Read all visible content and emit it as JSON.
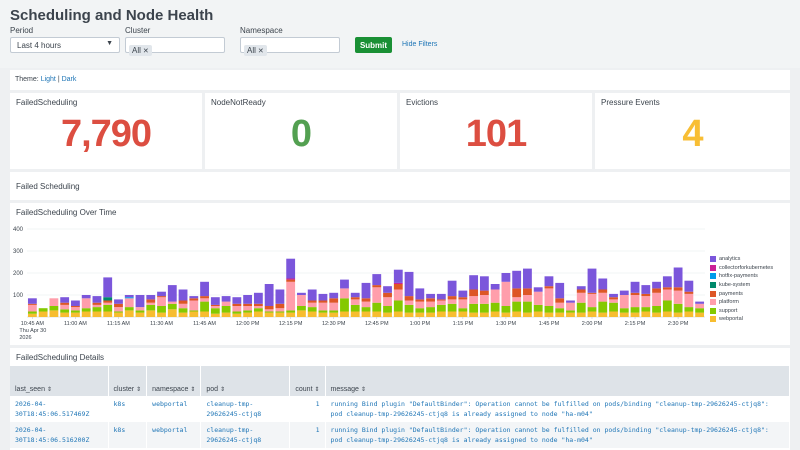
{
  "page": {
    "title": "Scheduling and Node Health"
  },
  "filters": {
    "period": {
      "label": "Period",
      "value": "Last 4 hours"
    },
    "cluster": {
      "label": "Cluster",
      "token": "All"
    },
    "namespace": {
      "label": "Namespace",
      "token": "All"
    },
    "submit_label": "Submit",
    "hide_filters_label": "Hide Filters"
  },
  "theme": {
    "label": "Theme:",
    "light": "Light",
    "separator": "|",
    "dark": "Dark"
  },
  "kpis": [
    {
      "title": "FailedScheduling",
      "value": "7,790",
      "color": "#dc4e41"
    },
    {
      "title": "NodeNotReady",
      "value": "0",
      "color": "#53a051"
    },
    {
      "title": "Evictions",
      "value": "101",
      "color": "#dc4e41"
    },
    {
      "title": "Pressure Events",
      "value": "4",
      "color": "#f8be34"
    }
  ],
  "section": {
    "failed_scheduling": "Failed Scheduling"
  },
  "chart_title": "FailedScheduling Over Time",
  "chart_data": {
    "type": "bar",
    "stacked": true,
    "title": "FailedScheduling Over Time",
    "ylim": [
      0,
      400
    ],
    "yticks": [
      "400",
      "300",
      "200",
      "100"
    ],
    "yticks_values": [
      400,
      300,
      200,
      100
    ],
    "xtick_labels": [
      {
        "label": "10:45 AM",
        "sub": [
          "Thu Apr 30",
          "2026"
        ],
        "index": 0
      },
      {
        "label": "11:00 AM",
        "index": 4
      },
      {
        "label": "11:15 AM",
        "index": 8
      },
      {
        "label": "11:30 AM",
        "index": 12
      },
      {
        "label": "11:45 AM",
        "index": 16
      },
      {
        "label": "12:00 PM",
        "index": 20
      },
      {
        "label": "12:15 PM",
        "index": 24
      },
      {
        "label": "12:30 PM",
        "index": 28
      },
      {
        "label": "12:45 PM",
        "index": 32
      },
      {
        "label": "1:00 PM",
        "index": 36
      },
      {
        "label": "1:15 PM",
        "index": 40
      },
      {
        "label": "1:30 PM",
        "index": 44
      },
      {
        "label": "1:45 PM",
        "index": 48
      },
      {
        "label": "2:00 PM",
        "index": 52
      },
      {
        "label": "2:15 PM",
        "index": 56
      },
      {
        "label": "2:30 PM",
        "index": 60
      }
    ],
    "legend_position": "right",
    "series": [
      {
        "name": "analytics",
        "color": "#7b56db",
        "values": [
          25,
          0,
          0,
          25,
          25,
          15,
          30,
          90,
          20,
          10,
          55,
          20,
          20,
          75,
          50,
          10,
          65,
          35,
          25,
          30,
          40,
          50,
          100,
          65,
          90,
          10,
          50,
          30,
          25,
          40,
          20,
          70,
          50,
          30,
          60,
          110,
          50,
          20,
          25,
          70,
          30,
          65,
          65,
          25,
          40,
          80,
          90,
          20,
          45,
          70,
          10,
          15,
          110,
          50,
          15,
          20,
          50,
          40,
          30,
          50,
          90,
          50,
          10
        ]
      },
      {
        "name": "collectorforkubernetes",
        "color": "#cb2196",
        "values": [
          0,
          0,
          0,
          0,
          0,
          0,
          0,
          0,
          0,
          0,
          0,
          0,
          0,
          0,
          0,
          0,
          0,
          0,
          0,
          0,
          0,
          0,
          0,
          0,
          5,
          0,
          0,
          0,
          0,
          0,
          0,
          0,
          0,
          0,
          5,
          0,
          0,
          0,
          0,
          0,
          0,
          0,
          0,
          0,
          0,
          0,
          0,
          0,
          0,
          0,
          0,
          0,
          0,
          0,
          0,
          0,
          0,
          0,
          0,
          0,
          0,
          0,
          0
        ]
      },
      {
        "name": "hotfix-payments",
        "color": "#009ceb",
        "values": [
          0,
          0,
          0,
          0,
          0,
          0,
          0,
          0,
          0,
          5,
          0,
          0,
          0,
          0,
          0,
          0,
          0,
          0,
          0,
          0,
          0,
          0,
          0,
          0,
          0,
          0,
          0,
          0,
          0,
          0,
          0,
          0,
          0,
          0,
          0,
          0,
          0,
          0,
          0,
          0,
          0,
          0,
          0,
          0,
          0,
          0,
          0,
          0,
          0,
          0,
          0,
          0,
          0,
          0,
          0,
          0,
          0,
          0,
          0,
          0,
          0,
          0,
          0
        ]
      },
      {
        "name": "kube-system",
        "color": "#00896b",
        "values": [
          0,
          0,
          0,
          0,
          0,
          0,
          0,
          15,
          0,
          0,
          0,
          0,
          0,
          0,
          0,
          0,
          0,
          0,
          0,
          0,
          0,
          0,
          0,
          0,
          0,
          0,
          0,
          0,
          0,
          0,
          0,
          0,
          0,
          0,
          0,
          0,
          0,
          0,
          0,
          0,
          0,
          0,
          0,
          0,
          0,
          0,
          0,
          0,
          0,
          0,
          0,
          0,
          0,
          0,
          0,
          0,
          0,
          0,
          0,
          0,
          0,
          0,
          0
        ]
      },
      {
        "name": "payments",
        "color": "#dd5626",
        "values": [
          5,
          0,
          0,
          10,
          5,
          0,
          10,
          10,
          15,
          0,
          0,
          15,
          5,
          0,
          15,
          10,
          10,
          5,
          0,
          10,
          10,
          10,
          15,
          20,
          10,
          0,
          10,
          10,
          20,
          0,
          10,
          15,
          10,
          20,
          25,
          20,
          10,
          15,
          5,
          15,
          10,
          30,
          20,
          0,
          0,
          40,
          30,
          0,
          10,
          20,
          0,
          15,
          5,
          15,
          10,
          0,
          10,
          10,
          20,
          10,
          15,
          10,
          0
        ]
      },
      {
        "name": "platform",
        "color": "#ff9eab",
        "values": [
          30,
          0,
          35,
          20,
          15,
          45,
          10,
          10,
          20,
          40,
          15,
          10,
          40,
          10,
          20,
          45,
          15,
          10,
          20,
          25,
          20,
          10,
          10,
          15,
          130,
          50,
          20,
          35,
          35,
          45,
          25,
          25,
          70,
          40,
          50,
          20,
          30,
          25,
          20,
          20,
          40,
          35,
          40,
          60,
          110,
          20,
          30,
          60,
          80,
          25,
          35,
          45,
          60,
          40,
          15,
          60,
          55,
          50,
          60,
          50,
          60,
          60,
          20
        ]
      },
      {
        "name": "support",
        "color": "#84c900",
        "values": [
          10,
          15,
          20,
          15,
          10,
          15,
          20,
          30,
          5,
          15,
          10,
          25,
          30,
          25,
          20,
          5,
          45,
          25,
          30,
          10,
          10,
          15,
          5,
          5,
          10,
          20,
          20,
          10,
          10,
          60,
          30,
          20,
          40,
          30,
          50,
          35,
          20,
          25,
          30,
          35,
          15,
          40,
          40,
          40,
          30,
          45,
          50,
          30,
          30,
          20,
          10,
          45,
          20,
          50,
          40,
          20,
          25,
          20,
          30,
          50,
          40,
          20,
          20
        ]
      },
      {
        "name": "webportal",
        "color": "#f7bd30",
        "values": [
          15,
          25,
          30,
          20,
          20,
          25,
          25,
          25,
          20,
          30,
          20,
          30,
          20,
          35,
          20,
          25,
          25,
          15,
          20,
          15,
          20,
          25,
          20,
          20,
          20,
          30,
          25,
          20,
          20,
          25,
          25,
          25,
          25,
          20,
          25,
          20,
          20,
          20,
          25,
          25,
          25,
          20,
          20,
          25,
          20,
          25,
          20,
          25,
          20,
          20,
          20,
          20,
          25,
          20,
          25,
          20,
          20,
          25,
          20,
          25,
          20,
          25,
          20
        ]
      }
    ]
  },
  "details": {
    "title": "FailedScheduling Details",
    "columns": [
      {
        "label": "last_seen",
        "sortable": true
      },
      {
        "label": "cluster",
        "sortable": true
      },
      {
        "label": "namespace",
        "sortable": true
      },
      {
        "label": "pod",
        "sortable": true
      },
      {
        "label": "count",
        "sortable": true
      },
      {
        "label": "message",
        "sortable": true
      }
    ],
    "rows": [
      {
        "last_seen": "2026-04-30T18:45:06.517469Z",
        "cluster": "k8s",
        "namespace": "webportal",
        "pod": "cleanup-tmp-29626245-ctjq8",
        "count": "1",
        "message": "running Bind plugin \"DefaultBinder\": Operation cannot be fulfilled on pods/binding \"cleanup-tmp-29626245-ctjq8\": pod cleanup-tmp-29626245-ctjq8 is already assigned to node \"ha-m04\""
      },
      {
        "last_seen": "2026-04-30T18:45:06.516200Z",
        "cluster": "k8s",
        "namespace": "webportal",
        "pod": "cleanup-tmp-29626245-ctjq8",
        "count": "1",
        "message": "running Bind plugin \"DefaultBinder\": Operation cannot be fulfilled on pods/binding \"cleanup-tmp-29626245-ctjq8\": pod cleanup-tmp-29626245-ctjq8 is already assigned to node \"ha-m04\""
      }
    ]
  }
}
